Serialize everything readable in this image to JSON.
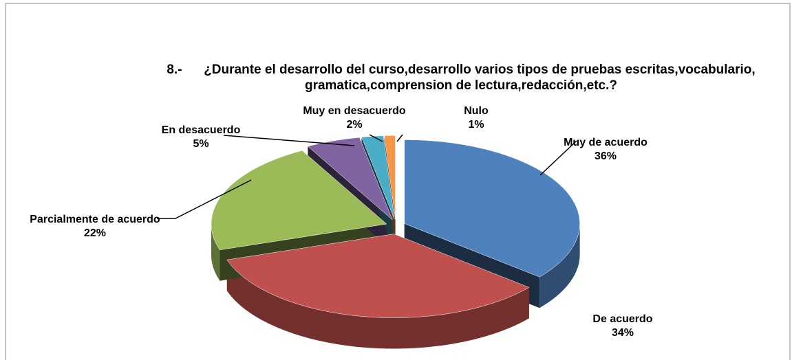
{
  "chart_data": {
    "type": "pie3d",
    "title": "8.-      ¿Durante el desarrollo del curso,desarrollo varios tipos de pruebas escritas,vocabulario, gramatica,comprension de lectura,redacción,etc.?",
    "categories": [
      "Muy de acuerdo",
      "De acuerdo",
      "Parcialmente de acuerdo",
      "En desacuerdo",
      "Muy en desacuerdo",
      "Nulo"
    ],
    "values": [
      36,
      34,
      22,
      5,
      2,
      1
    ],
    "value_labels": [
      "36%",
      "34%",
      "22%",
      "5%",
      "2%",
      "1%"
    ],
    "colors": [
      "#4f81bd",
      "#c0504d",
      "#9bbb59",
      "#8064a2",
      "#4bacc6",
      "#f79646"
    ]
  }
}
